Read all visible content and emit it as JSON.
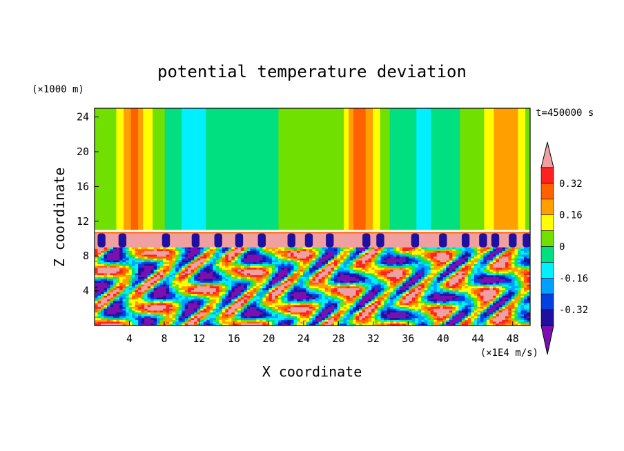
{
  "chart_data": {
    "type": "heatmap",
    "title": "potential temperature deviation",
    "time_label": "t=450000 s",
    "xlabel": "X coordinate",
    "ylabel": "Z coordinate",
    "x_units": "(×1E4 m/s)",
    "y_units": "(×1000 m)",
    "xlim": [
      0,
      50
    ],
    "ylim": [
      0,
      25
    ],
    "x_ticks": [
      4,
      8,
      12,
      16,
      20,
      24,
      28,
      32,
      36,
      40,
      44,
      48
    ],
    "y_ticks": [
      4,
      8,
      12,
      16,
      20,
      24
    ],
    "colorbar": {
      "levels": [
        -0.4,
        -0.32,
        -0.24,
        -0.16,
        -0.08,
        0,
        0.08,
        0.16,
        0.24,
        0.32,
        0.4
      ],
      "labels": [
        "-0.32",
        "-0.16",
        "0",
        "0.16",
        "0.32"
      ],
      "label_values": [
        -0.32,
        -0.16,
        0,
        0.16,
        0.32
      ],
      "colors": [
        "#7a10b0",
        "#2010a0",
        "#0040e0",
        "#00a0ff",
        "#00f0ff",
        "#00e080",
        "#70e000",
        "#ffff00",
        "#ffa000",
        "#ff6000",
        "#ff2020",
        "#f0a0a0"
      ]
    },
    "field": {
      "upper_layer": {
        "z_range": [
          11,
          25
        ],
        "x": [
          0,
          2,
          3.5,
          4.5,
          6,
          8,
          10,
          12,
          14,
          16,
          18,
          20,
          22,
          24,
          26,
          28,
          29.5,
          30.5,
          32,
          34,
          36,
          38,
          40,
          42,
          44,
          45.5,
          47,
          48.5,
          50
        ],
        "values": [
          0.02,
          0.04,
          0.18,
          0.28,
          0.12,
          0.0,
          -0.08,
          -0.1,
          -0.04,
          0.0,
          -0.08,
          -0.06,
          0.04,
          0.06,
          0.02,
          0.0,
          0.22,
          0.3,
          0.14,
          0.0,
          -0.06,
          -0.1,
          -0.04,
          0.0,
          0.04,
          0.14,
          0.22,
          0.16,
          0.04
        ]
      },
      "interface_band": {
        "z_range": [
          9,
          10.6
        ],
        "value": 0.4
      },
      "dark_cells": {
        "z_range": [
          9,
          10.6
        ],
        "x_centers": [
          0.8,
          3.2,
          8.2,
          11.6,
          14.2,
          16.6,
          19.2,
          22.6,
          24.6,
          27.0,
          31.2,
          32.8,
          36.8,
          40.0,
          42.6,
          44.6,
          46.0,
          48.0,
          49.6
        ],
        "value": -0.4
      },
      "lower_layer": {
        "z_range": [
          0,
          9
        ],
        "description_values": "turbulent mix spanning -0.40 to 0.40"
      }
    }
  }
}
